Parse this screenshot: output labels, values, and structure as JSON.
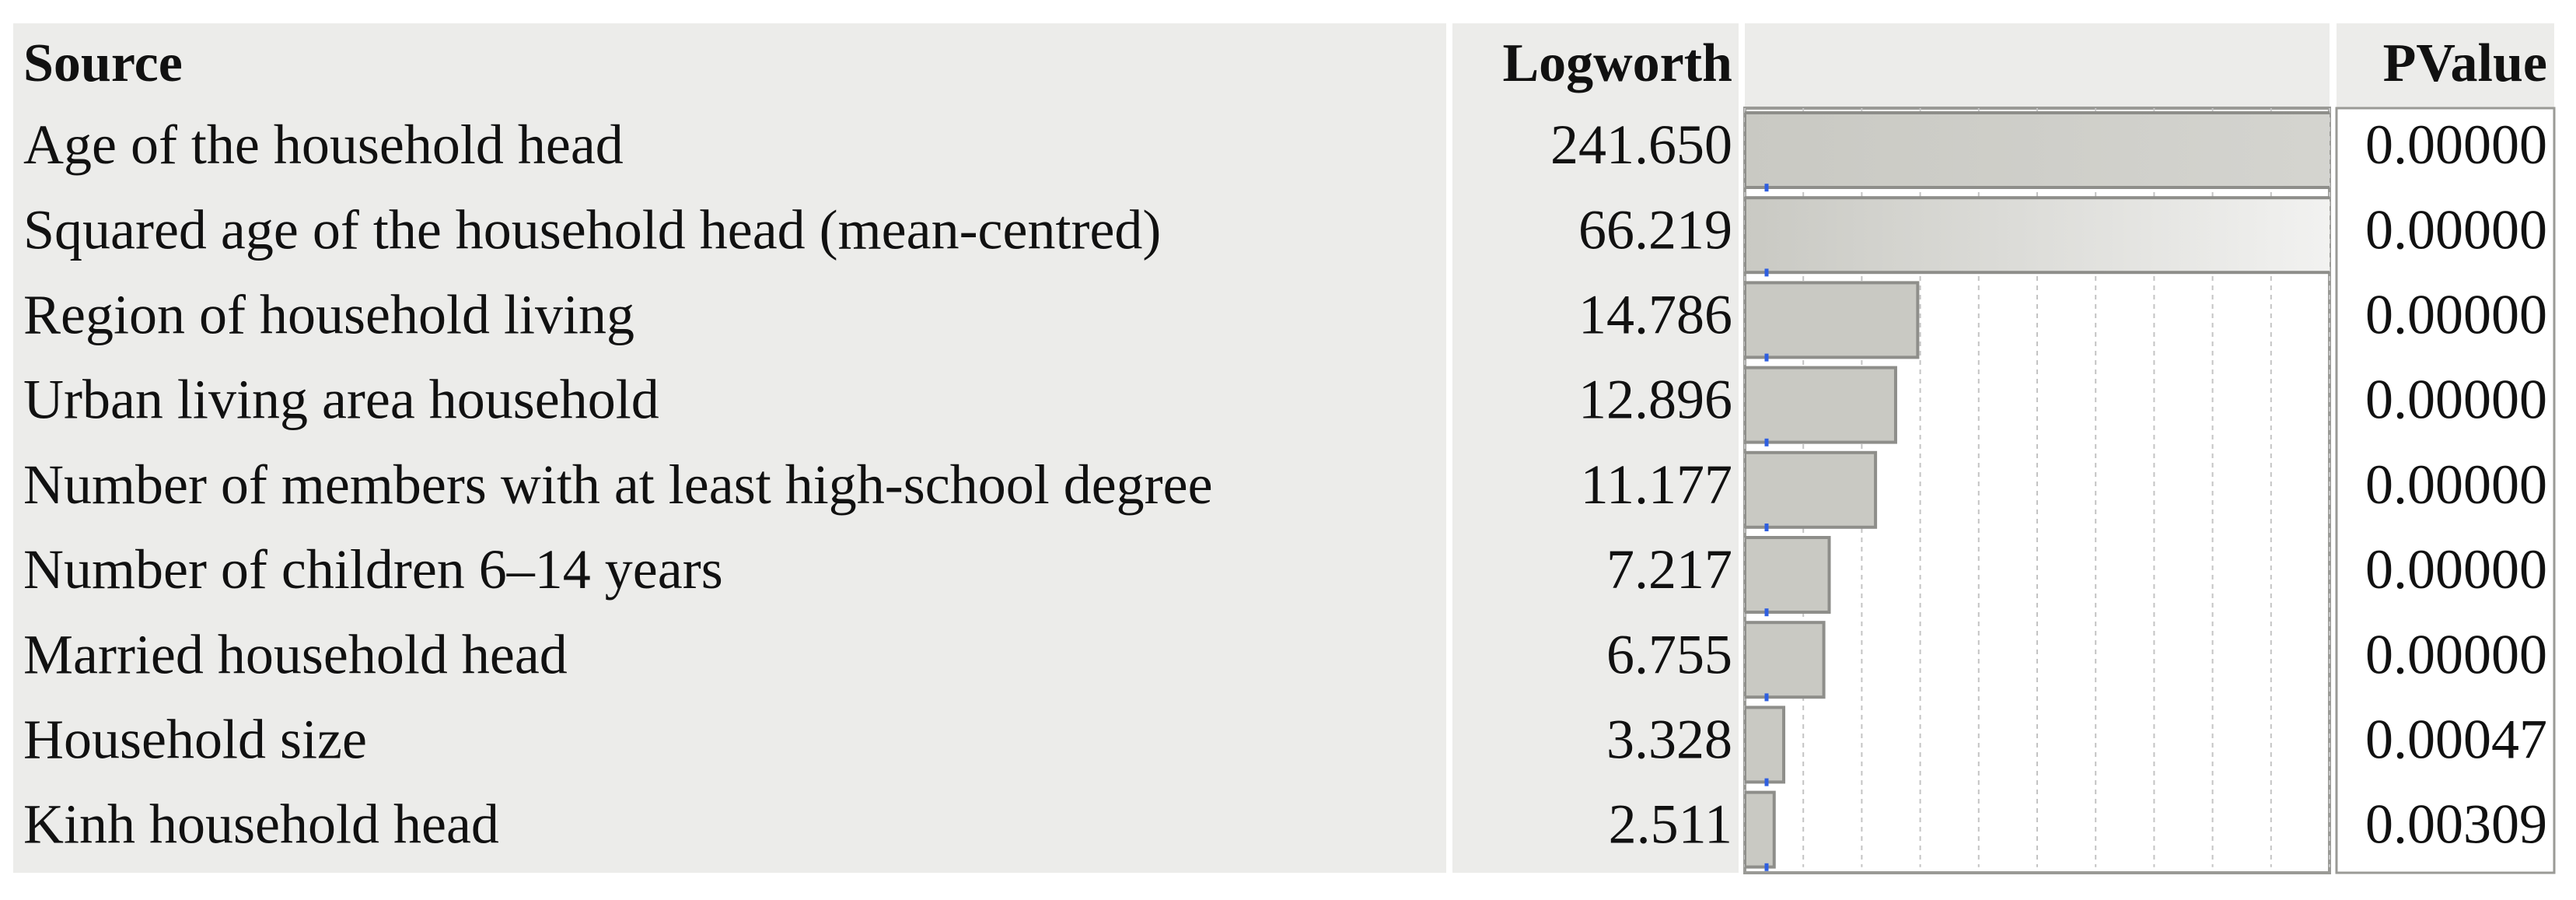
{
  "chart_data": {
    "type": "bar",
    "orientation": "horizontal",
    "columns": {
      "source": "Source",
      "logworth": "Logworth",
      "pvalue": "PValue"
    },
    "categories": [
      "Age of the household head",
      "Squared age of the household head (mean-centred)",
      "Region of household living",
      "Urban living area household",
      "Number of members with at least high-school degree",
      "Number of children 6–14 years",
      "Married household head",
      "Household size",
      "Kinh household head"
    ],
    "values": [
      241.65,
      66.219,
      14.786,
      12.896,
      11.177,
      7.217,
      6.755,
      3.328,
      2.511
    ],
    "value_labels": [
      "241.650",
      "66.219",
      "14.786",
      "12.896",
      "11.177",
      "7.217",
      "6.755",
      "3.328",
      "2.511"
    ],
    "pvalues": [
      0,
      0,
      0,
      0,
      0,
      0,
      0,
      0.00047,
      0.00309
    ],
    "pvalue_labels": [
      "0.00000",
      "0.00000",
      "0.00000",
      "0.00000",
      "0.00000",
      "0.00000",
      "0.00000",
      "0.00047",
      "0.00309"
    ],
    "xlim": [
      0,
      50
    ],
    "xticks": [
      0,
      5,
      10,
      15,
      20,
      25,
      30,
      35,
      40,
      45,
      50
    ],
    "grid": true,
    "color": "#c9c9c3"
  }
}
